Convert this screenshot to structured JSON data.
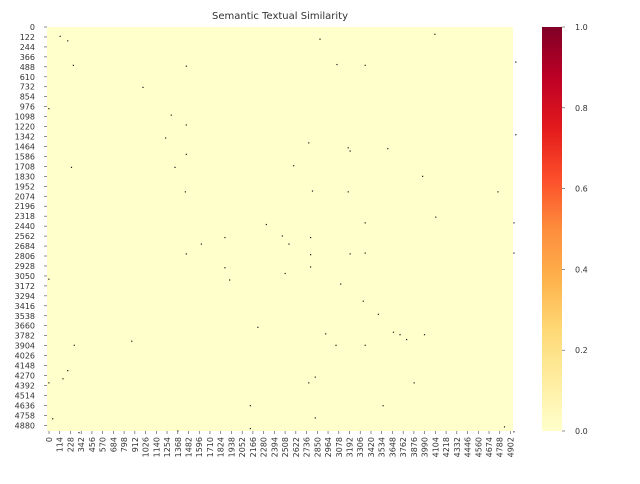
{
  "chart_data": {
    "type": "heatmap",
    "title": "Semantic Textual Similarity",
    "xlabel": "",
    "ylabel": "",
    "matrix_size": 4950,
    "x_ticks": [
      "0",
      "114",
      "228",
      "342",
      "456",
      "570",
      "684",
      "798",
      "912",
      "1026",
      "1140",
      "1254",
      "1368",
      "1482",
      "1596",
      "1710",
      "1824",
      "1938",
      "2052",
      "2166",
      "2280",
      "2394",
      "2508",
      "2622",
      "2736",
      "2850",
      "2964",
      "3078",
      "3192",
      "3306",
      "3420",
      "3534",
      "3648",
      "3762",
      "3876",
      "3990",
      "4104",
      "4218",
      "4332",
      "4446",
      "4560",
      "4674",
      "4788",
      "4902"
    ],
    "y_ticks": [
      "0",
      "122",
      "244",
      "366",
      "488",
      "610",
      "732",
      "854",
      "976",
      "1098",
      "1220",
      "1342",
      "1464",
      "1586",
      "1708",
      "1830",
      "1952",
      "2074",
      "2196",
      "2318",
      "2440",
      "2562",
      "2684",
      "2806",
      "2928",
      "3050",
      "3172",
      "3294",
      "3416",
      "3538",
      "3660",
      "3782",
      "3904",
      "4026",
      "4148",
      "4270",
      "4392",
      "4514",
      "4636",
      "4758",
      "4880"
    ],
    "background_value": 0.0,
    "high_values": [
      {
        "x": 140,
        "y": 115,
        "value": 1.0
      },
      {
        "x": 220,
        "y": 170,
        "value": 1.0
      },
      {
        "x": 280,
        "y": 470,
        "value": 1.0
      },
      {
        "x": 1020,
        "y": 740,
        "value": 1.0
      },
      {
        "x": 1480,
        "y": 480,
        "value": 1.0
      },
      {
        "x": 2900,
        "y": 150,
        "value": 1.0
      },
      {
        "x": 3080,
        "y": 460,
        "value": 1.0
      },
      {
        "x": 3380,
        "y": 470,
        "value": 1.0
      },
      {
        "x": 4120,
        "y": 90,
        "value": 1.0
      },
      {
        "x": 4980,
        "y": 430,
        "value": 1.0
      },
      {
        "x": 20,
        "y": 1000,
        "value": 1.0
      },
      {
        "x": 1320,
        "y": 1080,
        "value": 1.0
      },
      {
        "x": 1480,
        "y": 1200,
        "value": 1.0
      },
      {
        "x": 1260,
        "y": 1360,
        "value": 1.0
      },
      {
        "x": 4980,
        "y": 1320,
        "value": 1.0
      },
      {
        "x": 2780,
        "y": 1420,
        "value": 1.0
      },
      {
        "x": 3200,
        "y": 1480,
        "value": 1.0
      },
      {
        "x": 3220,
        "y": 1520,
        "value": 1.0
      },
      {
        "x": 3620,
        "y": 1490,
        "value": 1.0
      },
      {
        "x": 1480,
        "y": 1560,
        "value": 1.0
      },
      {
        "x": 260,
        "y": 1720,
        "value": 1.0
      },
      {
        "x": 1360,
        "y": 1720,
        "value": 1.0
      },
      {
        "x": 2620,
        "y": 1700,
        "value": 1.0
      },
      {
        "x": 3990,
        "y": 1830,
        "value": 1.0
      },
      {
        "x": 1470,
        "y": 2020,
        "value": 1.0
      },
      {
        "x": 2820,
        "y": 2010,
        "value": 1.0
      },
      {
        "x": 3200,
        "y": 2020,
        "value": 1.0
      },
      {
        "x": 4790,
        "y": 2020,
        "value": 1.0
      },
      {
        "x": 4130,
        "y": 2330,
        "value": 1.0
      },
      {
        "x": 2330,
        "y": 2420,
        "value": 1.0
      },
      {
        "x": 3380,
        "y": 2400,
        "value": 1.0
      },
      {
        "x": 4960,
        "y": 2400,
        "value": 1.0
      },
      {
        "x": 2500,
        "y": 2560,
        "value": 1.0
      },
      {
        "x": 1890,
        "y": 2580,
        "value": 1.0
      },
      {
        "x": 2800,
        "y": 2580,
        "value": 1.0
      },
      {
        "x": 1640,
        "y": 2660,
        "value": 1.0
      },
      {
        "x": 2570,
        "y": 2660,
        "value": 1.0
      },
      {
        "x": 1480,
        "y": 2780,
        "value": 1.0
      },
      {
        "x": 2800,
        "y": 2790,
        "value": 1.0
      },
      {
        "x": 3220,
        "y": 2780,
        "value": 1.0
      },
      {
        "x": 3380,
        "y": 2770,
        "value": 1.0
      },
      {
        "x": 4960,
        "y": 2770,
        "value": 1.0
      },
      {
        "x": 1890,
        "y": 2950,
        "value": 1.0
      },
      {
        "x": 2800,
        "y": 2940,
        "value": 1.0
      },
      {
        "x": 2530,
        "y": 3020,
        "value": 1.0
      },
      {
        "x": 1940,
        "y": 3100,
        "value": 1.0
      },
      {
        "x": 20,
        "y": 3090,
        "value": 1.0
      },
      {
        "x": 3120,
        "y": 3150,
        "value": 1.0
      },
      {
        "x": 3360,
        "y": 3360,
        "value": 1.0
      },
      {
        "x": 3520,
        "y": 3520,
        "value": 1.0
      },
      {
        "x": 2240,
        "y": 3680,
        "value": 1.0
      },
      {
        "x": 2960,
        "y": 3760,
        "value": 1.0
      },
      {
        "x": 3680,
        "y": 3740,
        "value": 1.0
      },
      {
        "x": 3750,
        "y": 3770,
        "value": 1.0
      },
      {
        "x": 3820,
        "y": 3830,
        "value": 1.0
      },
      {
        "x": 4010,
        "y": 3770,
        "value": 1.0
      },
      {
        "x": 900,
        "y": 3850,
        "value": 1.0
      },
      {
        "x": 290,
        "y": 3900,
        "value": 1.0
      },
      {
        "x": 3070,
        "y": 3900,
        "value": 1.0
      },
      {
        "x": 3380,
        "y": 3900,
        "value": 1.0
      },
      {
        "x": 220,
        "y": 4210,
        "value": 1.0
      },
      {
        "x": 170,
        "y": 4310,
        "value": 1.0
      },
      {
        "x": 2850,
        "y": 4290,
        "value": 1.0
      },
      {
        "x": 20,
        "y": 4360,
        "value": 1.0
      },
      {
        "x": 2780,
        "y": 4360,
        "value": 1.0
      },
      {
        "x": 3900,
        "y": 4360,
        "value": 1.0
      },
      {
        "x": 2160,
        "y": 4640,
        "value": 1.0
      },
      {
        "x": 3570,
        "y": 4640,
        "value": 1.0
      },
      {
        "x": 60,
        "y": 4800,
        "value": 1.0
      },
      {
        "x": 2850,
        "y": 4790,
        "value": 1.0
      },
      {
        "x": 4860,
        "y": 4900,
        "value": 1.0
      },
      {
        "x": 2160,
        "y": 4920,
        "value": 1.0
      },
      {
        "x": 1390,
        "y": 4950,
        "value": 1.0
      },
      {
        "x": 340,
        "y": 4970,
        "value": 1.0
      },
      {
        "x": 4960,
        "y": 4960,
        "value": 1.0
      }
    ],
    "colormap": "YlOrRd",
    "colorbar": {
      "min": 0.0,
      "max": 1.0,
      "tick_values": [
        0.0,
        0.2,
        0.4,
        0.6,
        0.8,
        1.0
      ],
      "tick_labels": [
        "0.0",
        "0.2",
        "0.4",
        "0.6",
        "0.8",
        "1.0"
      ]
    },
    "colors": {
      "low": "#ffffcc",
      "c1": "#ffeda0",
      "c2": "#fed976",
      "c3": "#feb24c",
      "c4": "#fd8d3c",
      "c5": "#fc4e2a",
      "c6": "#e31a1c",
      "c7": "#bd0026",
      "high": "#800026",
      "point": "#1a1a1a"
    },
    "grid": false,
    "legend": "colorbar-right"
  }
}
